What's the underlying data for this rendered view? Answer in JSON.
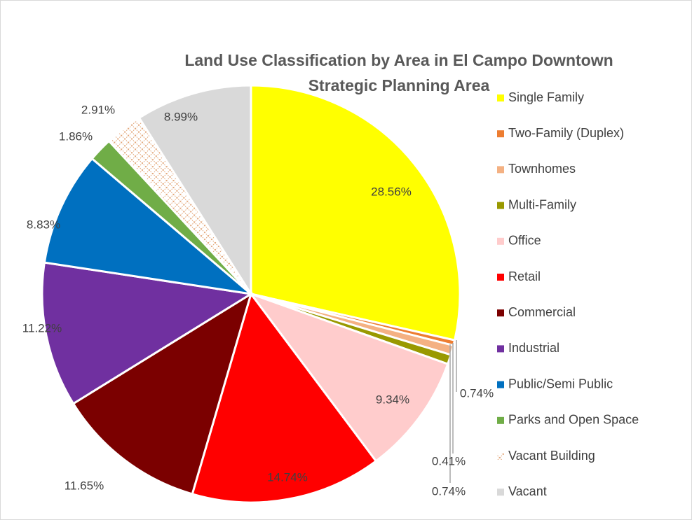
{
  "chart_data": {
    "type": "pie",
    "title": "Land Use Classification by Area in El Campo Downtown Strategic Planning Area",
    "categories": [
      "Single Family",
      "Two-Family  (Duplex)",
      "Townhomes",
      "Multi-Family",
      "Office",
      "Retail",
      "Commercial",
      "Industrial",
      "Public/Semi Public",
      "Parks and Open Space",
      "Vacant Building",
      "Vacant"
    ],
    "values": [
      28.56,
      0.41,
      0.74,
      0.74,
      9.34,
      14.74,
      11.65,
      11.22,
      8.83,
      1.86,
      2.91,
      8.99
    ],
    "value_labels": [
      "28.56%",
      "0.41%",
      "0.74%",
      "0.74%",
      "9.34%",
      "14.74%",
      "11.65%",
      "11.22%",
      "8.83%",
      "1.86%",
      "2.91%",
      "8.99%"
    ],
    "colors": [
      "#ffff00",
      "#ed7d31",
      "#f4b183",
      "#999900",
      "#ffcccc",
      "#ff0000",
      "#7b0000",
      "#7030a0",
      "#0070c0",
      "#70ad47",
      "pattern",
      "#d9d9d9"
    ],
    "legend": "right"
  }
}
